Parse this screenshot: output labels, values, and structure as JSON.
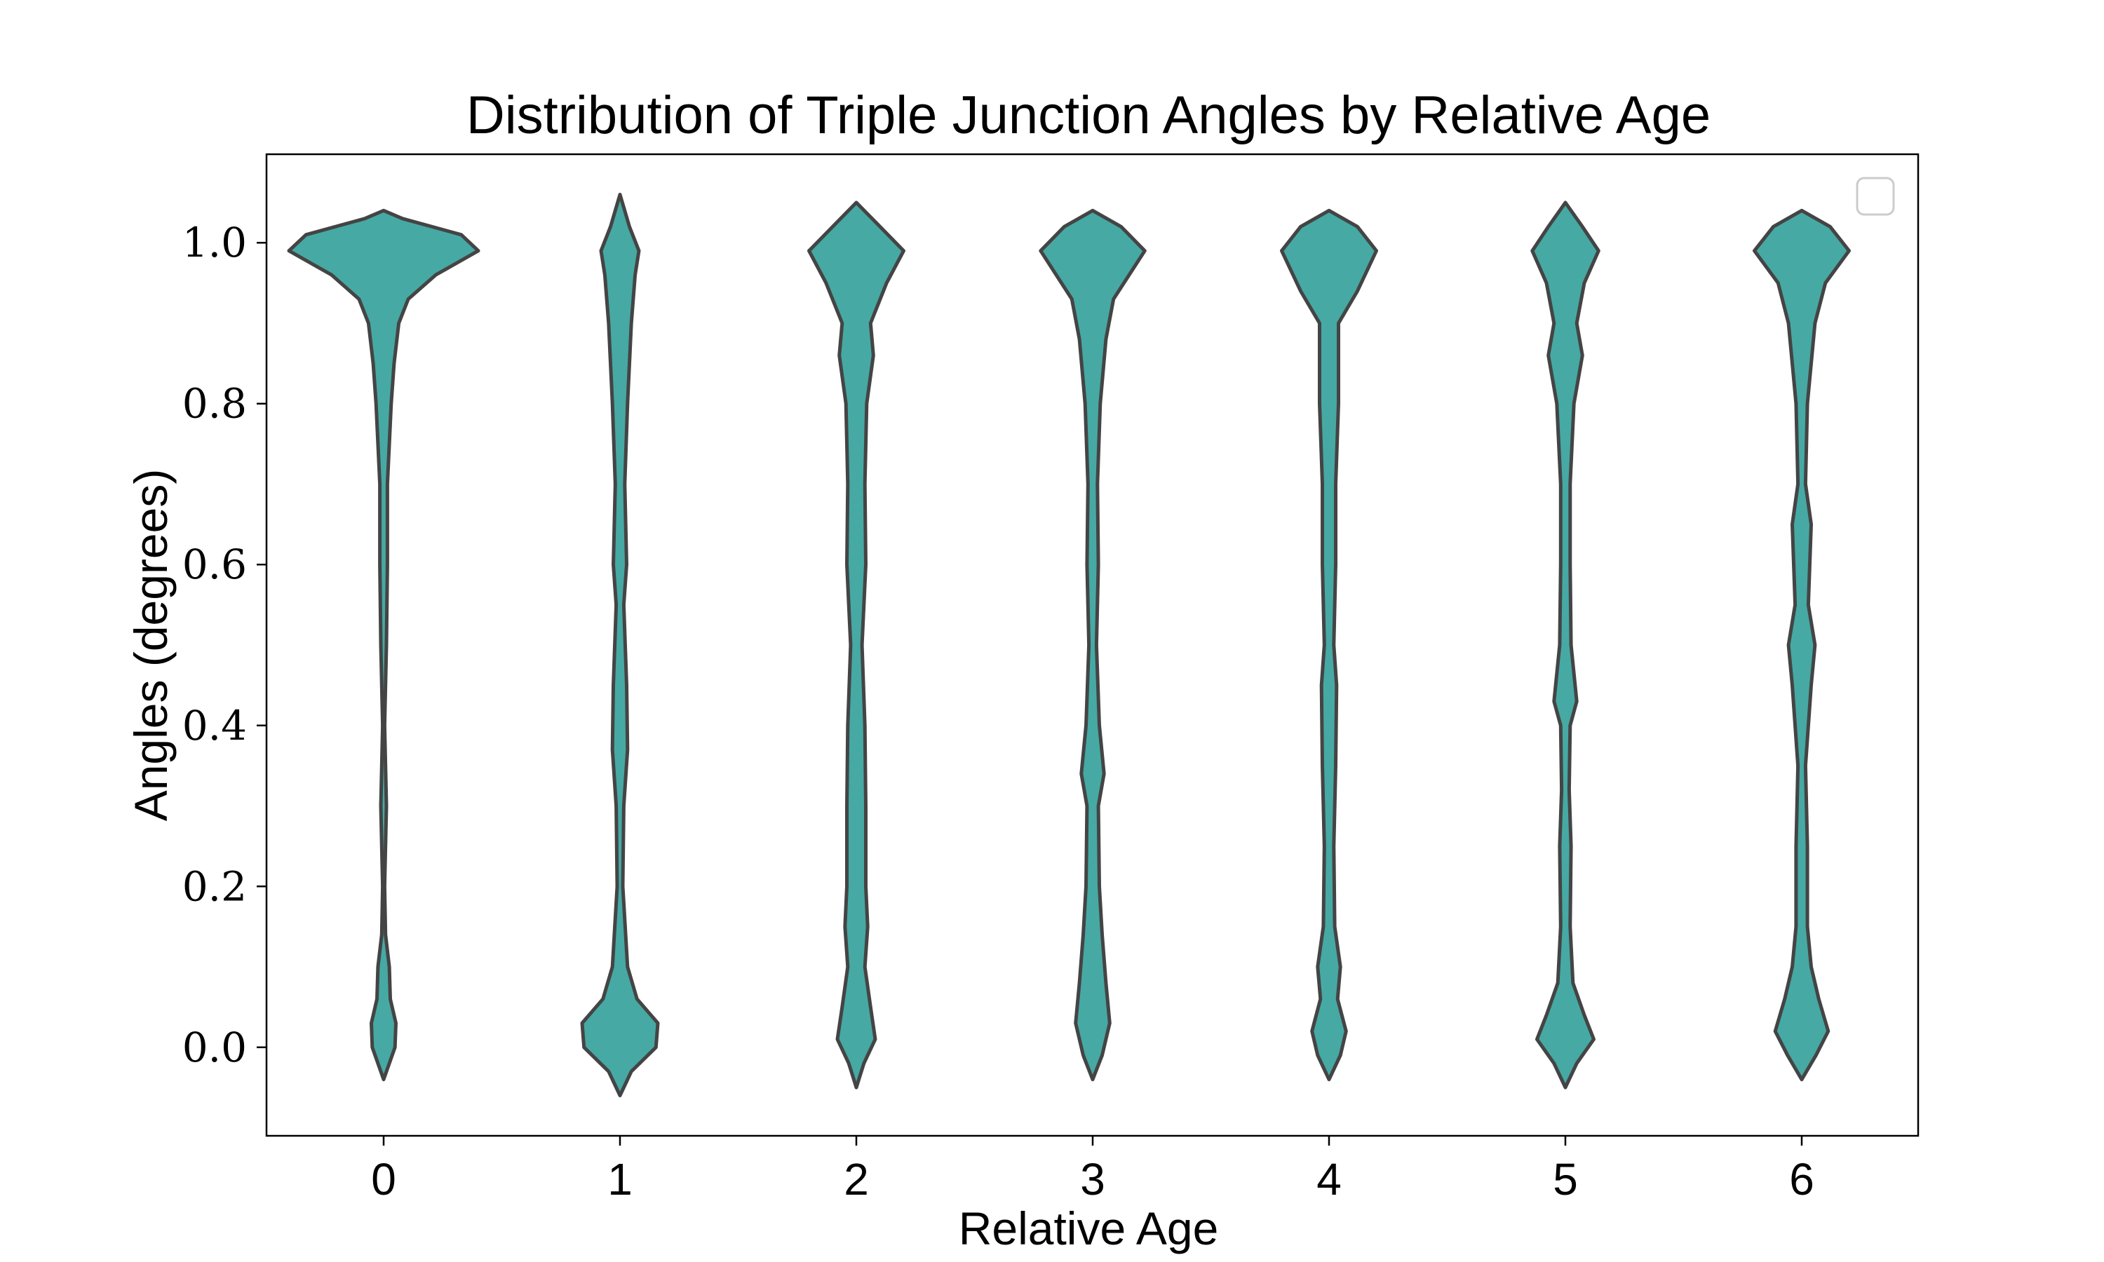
{
  "chart_data": {
    "type": "violin",
    "title": "Distribution of Triple Junction Angles by Relative Age",
    "xlabel": "Relative Age",
    "ylabel": "Angles (degrees)",
    "categories": [
      "0",
      "1",
      "2",
      "3",
      "4",
      "5",
      "6"
    ],
    "ylim": [
      -0.11,
      1.11
    ],
    "yticks": [
      0.0,
      0.2,
      0.4,
      0.6,
      0.8,
      1.0
    ],
    "ytick_labels": [
      "0.0",
      "0.2",
      "0.4",
      "0.6",
      "0.8",
      "1.0"
    ],
    "grid": false,
    "legend": "top-right (empty)",
    "fill_color": "#46a9a4",
    "edge_color": "#444444",
    "series": [
      {
        "category": "0",
        "y_range": [
          -0.04,
          1.04
        ],
        "density": [
          [
            -0.04,
            0.0
          ],
          [
            0.0,
            0.12
          ],
          [
            0.03,
            0.13
          ],
          [
            0.06,
            0.07
          ],
          [
            0.1,
            0.06
          ],
          [
            0.14,
            0.02
          ],
          [
            0.2,
            0.01
          ],
          [
            0.3,
            0.03
          ],
          [
            0.4,
            0.01
          ],
          [
            0.5,
            0.03
          ],
          [
            0.6,
            0.04
          ],
          [
            0.7,
            0.04
          ],
          [
            0.8,
            0.08
          ],
          [
            0.85,
            0.11
          ],
          [
            0.9,
            0.16
          ],
          [
            0.93,
            0.26
          ],
          [
            0.96,
            0.55
          ],
          [
            0.99,
            1.0
          ],
          [
            1.01,
            0.82
          ],
          [
            1.03,
            0.2
          ],
          [
            1.04,
            0.0
          ]
        ]
      },
      {
        "category": "1",
        "y_range": [
          -0.06,
          1.06
        ],
        "density": [
          [
            -0.06,
            0.0
          ],
          [
            -0.03,
            0.12
          ],
          [
            0.0,
            0.38
          ],
          [
            0.03,
            0.4
          ],
          [
            0.06,
            0.18
          ],
          [
            0.1,
            0.08
          ],
          [
            0.2,
            0.03
          ],
          [
            0.3,
            0.04
          ],
          [
            0.37,
            0.08
          ],
          [
            0.45,
            0.07
          ],
          [
            0.55,
            0.04
          ],
          [
            0.6,
            0.07
          ],
          [
            0.7,
            0.05
          ],
          [
            0.8,
            0.08
          ],
          [
            0.9,
            0.12
          ],
          [
            0.96,
            0.16
          ],
          [
            0.99,
            0.2
          ],
          [
            1.02,
            0.1
          ],
          [
            1.06,
            0.0
          ]
        ]
      },
      {
        "category": "2",
        "y_range": [
          -0.05,
          1.05
        ],
        "density": [
          [
            -0.05,
            0.0
          ],
          [
            -0.02,
            0.08
          ],
          [
            0.01,
            0.2
          ],
          [
            0.05,
            0.15
          ],
          [
            0.1,
            0.09
          ],
          [
            0.15,
            0.12
          ],
          [
            0.2,
            0.1
          ],
          [
            0.3,
            0.1
          ],
          [
            0.4,
            0.09
          ],
          [
            0.5,
            0.06
          ],
          [
            0.6,
            0.1
          ],
          [
            0.7,
            0.09
          ],
          [
            0.8,
            0.11
          ],
          [
            0.86,
            0.18
          ],
          [
            0.9,
            0.15
          ],
          [
            0.95,
            0.32
          ],
          [
            0.99,
            0.5
          ],
          [
            1.02,
            0.25
          ],
          [
            1.05,
            0.0
          ]
        ]
      },
      {
        "category": "3",
        "y_range": [
          -0.04,
          1.04
        ],
        "density": [
          [
            -0.04,
            0.0
          ],
          [
            -0.01,
            0.1
          ],
          [
            0.03,
            0.18
          ],
          [
            0.08,
            0.14
          ],
          [
            0.14,
            0.1
          ],
          [
            0.2,
            0.07
          ],
          [
            0.3,
            0.06
          ],
          [
            0.34,
            0.12
          ],
          [
            0.4,
            0.07
          ],
          [
            0.5,
            0.04
          ],
          [
            0.6,
            0.06
          ],
          [
            0.7,
            0.05
          ],
          [
            0.8,
            0.08
          ],
          [
            0.88,
            0.14
          ],
          [
            0.93,
            0.22
          ],
          [
            0.99,
            0.55
          ],
          [
            1.02,
            0.3
          ],
          [
            1.04,
            0.0
          ]
        ]
      },
      {
        "category": "4",
        "y_range": [
          -0.04,
          1.04
        ],
        "density": [
          [
            -0.04,
            0.0
          ],
          [
            -0.01,
            0.12
          ],
          [
            0.02,
            0.18
          ],
          [
            0.06,
            0.09
          ],
          [
            0.1,
            0.12
          ],
          [
            0.15,
            0.06
          ],
          [
            0.25,
            0.05
          ],
          [
            0.35,
            0.07
          ],
          [
            0.45,
            0.08
          ],
          [
            0.5,
            0.05
          ],
          [
            0.6,
            0.07
          ],
          [
            0.7,
            0.07
          ],
          [
            0.8,
            0.1
          ],
          [
            0.9,
            0.1
          ],
          [
            0.94,
            0.3
          ],
          [
            0.99,
            0.5
          ],
          [
            1.02,
            0.3
          ],
          [
            1.04,
            0.0
          ]
        ]
      },
      {
        "category": "5",
        "y_range": [
          -0.05,
          1.05
        ],
        "density": [
          [
            -0.05,
            0.0
          ],
          [
            -0.02,
            0.12
          ],
          [
            0.01,
            0.3
          ],
          [
            0.04,
            0.2
          ],
          [
            0.08,
            0.08
          ],
          [
            0.15,
            0.05
          ],
          [
            0.25,
            0.06
          ],
          [
            0.32,
            0.04
          ],
          [
            0.4,
            0.05
          ],
          [
            0.43,
            0.12
          ],
          [
            0.5,
            0.06
          ],
          [
            0.6,
            0.05
          ],
          [
            0.7,
            0.05
          ],
          [
            0.8,
            0.09
          ],
          [
            0.86,
            0.18
          ],
          [
            0.9,
            0.12
          ],
          [
            0.95,
            0.2
          ],
          [
            0.99,
            0.35
          ],
          [
            1.02,
            0.18
          ],
          [
            1.05,
            0.0
          ]
        ]
      },
      {
        "category": "6",
        "y_range": [
          -0.04,
          1.04
        ],
        "density": [
          [
            -0.04,
            0.0
          ],
          [
            -0.01,
            0.15
          ],
          [
            0.02,
            0.28
          ],
          [
            0.06,
            0.18
          ],
          [
            0.1,
            0.1
          ],
          [
            0.15,
            0.06
          ],
          [
            0.25,
            0.06
          ],
          [
            0.35,
            0.04
          ],
          [
            0.45,
            0.1
          ],
          [
            0.5,
            0.14
          ],
          [
            0.55,
            0.07
          ],
          [
            0.65,
            0.1
          ],
          [
            0.7,
            0.04
          ],
          [
            0.8,
            0.06
          ],
          [
            0.9,
            0.14
          ],
          [
            0.95,
            0.25
          ],
          [
            0.99,
            0.5
          ],
          [
            1.02,
            0.3
          ],
          [
            1.04,
            0.0
          ]
        ]
      }
    ]
  }
}
